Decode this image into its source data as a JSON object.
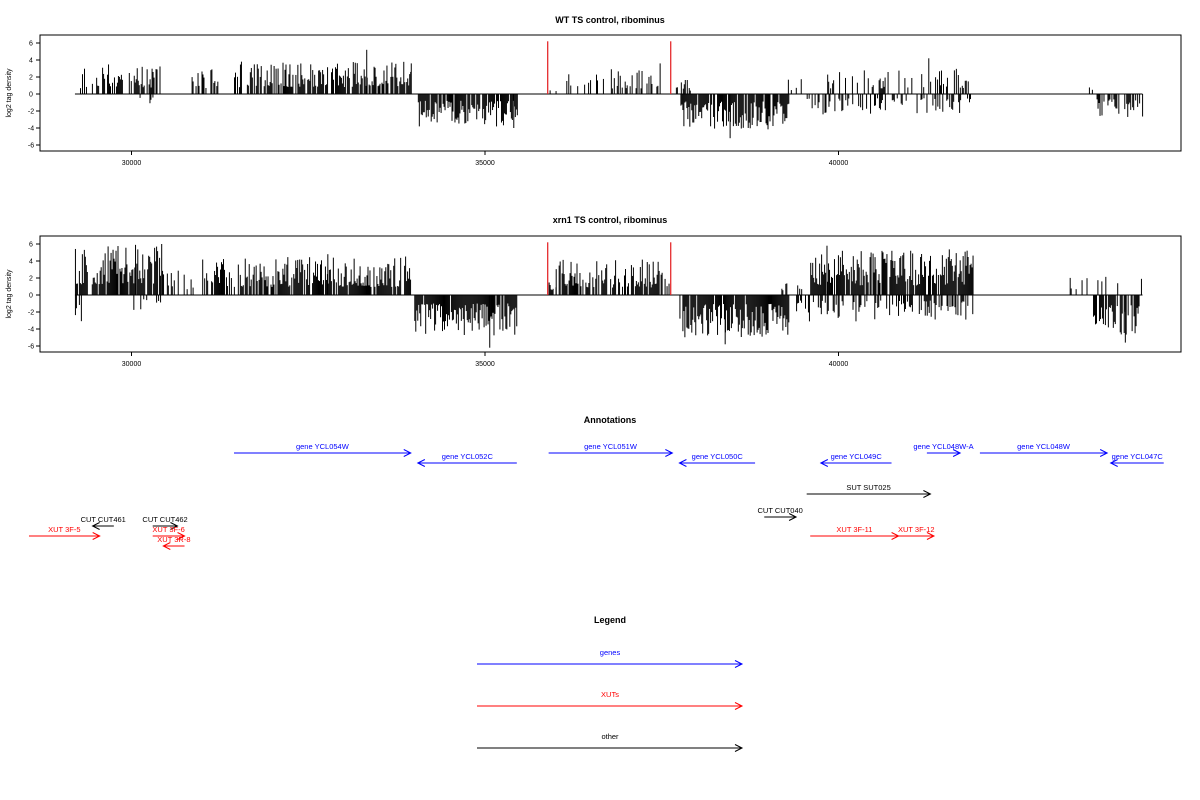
{
  "chart_data": [
    {
      "type": "bar",
      "title": "WT TS control, ribominus",
      "ylabel": "log2 tag density",
      "xlim": [
        28500,
        44700
      ],
      "ylim": [
        -6.5,
        6.5
      ],
      "yticks": [
        -6,
        -4,
        -2,
        0,
        2,
        4,
        6
      ],
      "xticks": [
        30000,
        35000,
        40000
      ],
      "markers": [
        35880,
        37620
      ],
      "marker_color": "#e31a1c",
      "pos_segments": [
        {
          "start": 29230,
          "end": 29500,
          "max": 2.5,
          "density": 0.3,
          "seed": 11
        },
        {
          "start": 29500,
          "end": 30400,
          "max": 3.0,
          "density": 0.45,
          "seed": 12
        },
        {
          "start": 30850,
          "end": 31250,
          "max": 2.8,
          "density": 0.45,
          "seed": 13
        },
        {
          "start": 31450,
          "end": 33950,
          "max": 3.2,
          "density": 0.75,
          "seed": 14
        },
        {
          "start": 35900,
          "end": 36000,
          "max": 1.3,
          "density": 0.5,
          "seed": 15
        },
        {
          "start": 36150,
          "end": 37500,
          "max": 2.6,
          "density": 0.35,
          "seed": 16
        },
        {
          "start": 37700,
          "end": 37900,
          "max": 1.5,
          "density": 0.4,
          "seed": 17
        },
        {
          "start": 39200,
          "end": 39500,
          "max": 1.8,
          "density": 0.2,
          "seed": 18
        },
        {
          "start": 39700,
          "end": 41900,
          "max": 2.5,
          "density": 0.25,
          "seed": 19
        },
        {
          "start": 43500,
          "end": 43600,
          "max": 1.5,
          "density": 0.2,
          "seed": 20
        }
      ],
      "neg_segments": [
        {
          "start": 30100,
          "end": 30300,
          "max": 1.6,
          "density": 0.25,
          "seed": 31
        },
        {
          "start": 34050,
          "end": 35450,
          "max": 3.2,
          "density": 0.8,
          "seed": 32
        },
        {
          "start": 37750,
          "end": 39300,
          "max": 3.5,
          "density": 0.9,
          "seed": 33
        },
        {
          "start": 39550,
          "end": 41900,
          "max": 2.0,
          "density": 0.35,
          "seed": 34
        },
        {
          "start": 43650,
          "end": 44300,
          "max": 2.5,
          "density": 0.6,
          "seed": 35
        }
      ],
      "peaks": [
        {
          "x": 33320,
          "y": 5.2
        },
        {
          "x": 33950,
          "y": 3.6
        },
        {
          "x": 41270,
          "y": 4.2
        },
        {
          "x": 37470,
          "y": 3.6
        },
        {
          "x": 38460,
          "y": -5.2
        },
        {
          "x": 35400,
          "y": -4.0
        }
      ]
    },
    {
      "type": "bar",
      "title": "xrn1 TS control, ribominus",
      "ylabel": "log2 tag density",
      "xlim": [
        28500,
        44700
      ],
      "ylim": [
        -6.5,
        6.5
      ],
      "yticks": [
        -6,
        -4,
        -2,
        0,
        2,
        4,
        6
      ],
      "xticks": [
        30000,
        35000,
        40000
      ],
      "markers": [
        35880,
        37620
      ],
      "marker_color": "#e31a1c",
      "pos_segments": [
        {
          "start": 29200,
          "end": 30450,
          "max": 4.8,
          "density": 0.85,
          "seed": 41
        },
        {
          "start": 30500,
          "end": 30900,
          "max": 2.5,
          "density": 0.4,
          "seed": 42
        },
        {
          "start": 31000,
          "end": 33950,
          "max": 3.8,
          "density": 0.8,
          "seed": 43
        },
        {
          "start": 35900,
          "end": 36000,
          "max": 1.5,
          "density": 0.5,
          "seed": 44
        },
        {
          "start": 36000,
          "end": 37600,
          "max": 3.5,
          "density": 0.7,
          "seed": 45
        },
        {
          "start": 39150,
          "end": 39500,
          "max": 2.2,
          "density": 0.3,
          "seed": 46
        },
        {
          "start": 39600,
          "end": 41900,
          "max": 4.5,
          "density": 0.85,
          "seed": 47
        },
        {
          "start": 43200,
          "end": 44300,
          "max": 2.0,
          "density": 0.15,
          "seed": 48
        }
      ],
      "neg_segments": [
        {
          "start": 29200,
          "end": 29350,
          "max": 3.0,
          "density": 0.4,
          "seed": 51
        },
        {
          "start": 29900,
          "end": 30450,
          "max": 2.0,
          "density": 0.3,
          "seed": 52
        },
        {
          "start": 34000,
          "end": 35450,
          "max": 4.0,
          "density": 0.9,
          "seed": 53
        },
        {
          "start": 37750,
          "end": 39300,
          "max": 4.2,
          "density": 0.9,
          "seed": 54
        },
        {
          "start": 39400,
          "end": 41900,
          "max": 2.6,
          "density": 0.55,
          "seed": 55
        },
        {
          "start": 43600,
          "end": 44250,
          "max": 4.0,
          "density": 0.8,
          "seed": 56
        }
      ],
      "peaks": [
        {
          "x": 30050,
          "y": 5.9
        },
        {
          "x": 30420,
          "y": 6.0
        },
        {
          "x": 39830,
          "y": 5.8
        },
        {
          "x": 35060,
          "y": -6.2
        },
        {
          "x": 38390,
          "y": -5.8
        },
        {
          "x": 44050,
          "y": -5.6
        },
        {
          "x": 32770,
          "y": 4.8
        }
      ]
    }
  ],
  "annotations": {
    "title": "Annotations",
    "xlim": [
      28500,
      44700
    ],
    "items": [
      {
        "label": "gene YCL054W",
        "start": 31450,
        "end": 33950,
        "strand": "+",
        "row": 1,
        "color": "#0000ff"
      },
      {
        "label": "gene YCL052C",
        "start": 34050,
        "end": 35450,
        "strand": "-",
        "row": 2,
        "color": "#0000ff"
      },
      {
        "label": "gene YCL051W",
        "start": 35900,
        "end": 37650,
        "strand": "+",
        "row": 1,
        "color": "#0000ff"
      },
      {
        "label": "gene YCL050C",
        "start": 37750,
        "end": 38820,
        "strand": "-",
        "row": 2,
        "color": "#0000ff"
      },
      {
        "label": "gene YCL049C",
        "start": 39750,
        "end": 40750,
        "strand": "-",
        "row": 2,
        "color": "#0000ff"
      },
      {
        "label": "gene YCL048W-A",
        "start": 41250,
        "end": 41720,
        "strand": "+",
        "row": 1,
        "color": "#0000ff"
      },
      {
        "label": "gene YCL048W",
        "start": 42000,
        "end": 43800,
        "strand": "+",
        "row": 1,
        "color": "#0000ff"
      },
      {
        "label": "gene YCL047C",
        "start": 43850,
        "end": 44600,
        "strand": "-",
        "row": 2,
        "color": "#0000ff"
      },
      {
        "label": "SUT SUT025",
        "start": 39550,
        "end": 41300,
        "strand": "+",
        "row": 4,
        "color": "#000000"
      },
      {
        "label": "CUT CUT040",
        "start": 38950,
        "end": 39400,
        "strand": "+",
        "row": 6,
        "color": "#000000"
      },
      {
        "label": "CUT CUT461",
        "start": 29450,
        "end": 29750,
        "strand": "-",
        "row": 7,
        "color": "#000000"
      },
      {
        "label": "CUT CUT462",
        "start": 30300,
        "end": 30650,
        "strand": "+",
        "row": 7,
        "color": "#000000"
      },
      {
        "label": "XUT 3F-5",
        "start": 28550,
        "end": 29550,
        "strand": "+",
        "row": 8,
        "color": "#ff0000"
      },
      {
        "label": "XUT 3F-6",
        "start": 30300,
        "end": 30750,
        "strand": "+",
        "row": 8,
        "color": "#ff0000"
      },
      {
        "label": "XUT 3R-8",
        "start": 30450,
        "end": 30750,
        "strand": "-",
        "row": 9,
        "color": "#ff0000"
      },
      {
        "label": "XUT 3F-11",
        "start": 39600,
        "end": 40850,
        "strand": "+",
        "row": 8,
        "color": "#ff0000"
      },
      {
        "label": "XUT 3F-12",
        "start": 40850,
        "end": 41350,
        "strand": "+",
        "row": 8,
        "color": "#ff0000"
      }
    ]
  },
  "legend": {
    "title": "Legend",
    "items": [
      {
        "label": "genes",
        "color": "#0000ff"
      },
      {
        "label": "XUTs",
        "color": "#ff0000"
      },
      {
        "label": "other",
        "color": "#000000"
      }
    ]
  }
}
